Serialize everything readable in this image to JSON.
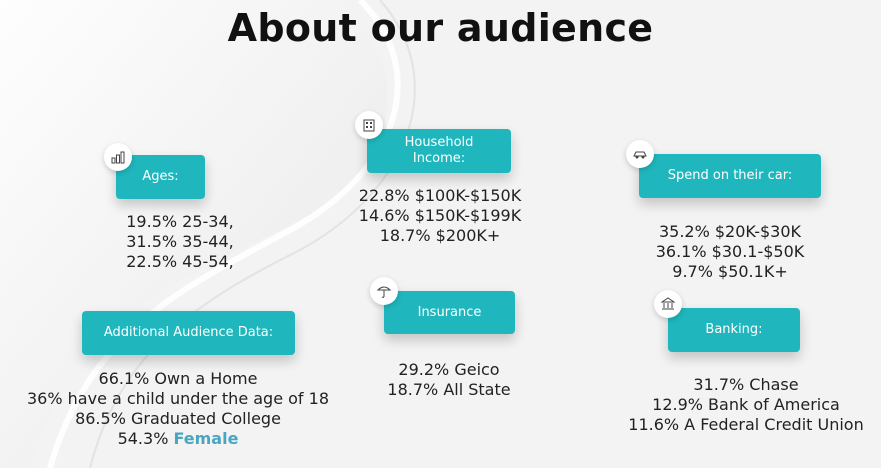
{
  "title": "About our audience",
  "colors": {
    "accent": "#1fb7bd",
    "highlight": "#4aa6c0",
    "background": "#f4f4f4"
  },
  "ages": {
    "label": "Ages:",
    "icon": "people-chart-icon",
    "lines": [
      "19.5% 25-34,",
      "31.5% 35-44,",
      "22.5% 45-54,"
    ]
  },
  "household_income": {
    "label_line1": "Household",
    "label_line2": "Income:",
    "icon": "building-icon",
    "lines": [
      "22.8% $100K-$150K",
      "14.6% $150K-$199K",
      "18.7% $200K+"
    ]
  },
  "car_spend": {
    "label": "Spend on their car:",
    "icon": "car-icon",
    "lines": [
      "35.2% $20K-$30K",
      "36.1% $30.1-$50K",
      "9.7% $50.1K+"
    ]
  },
  "additional": {
    "label": "Additional Audience Data:",
    "lines": [
      "66.1% Own a Home",
      "36% have a child under the age of 18",
      "86.5% Graduated College"
    ],
    "female_prefix": "54.3% ",
    "female_word": "Female"
  },
  "insurance": {
    "label": "Insurance",
    "icon": "insurance-icon",
    "lines": [
      "29.2% Geico",
      "18.7% All State"
    ]
  },
  "banking": {
    "label": "Banking:",
    "icon": "bank-icon",
    "lines": [
      "31.7% Chase",
      "12.9% Bank of America",
      "11.6% A Federal Credit Union"
    ]
  }
}
